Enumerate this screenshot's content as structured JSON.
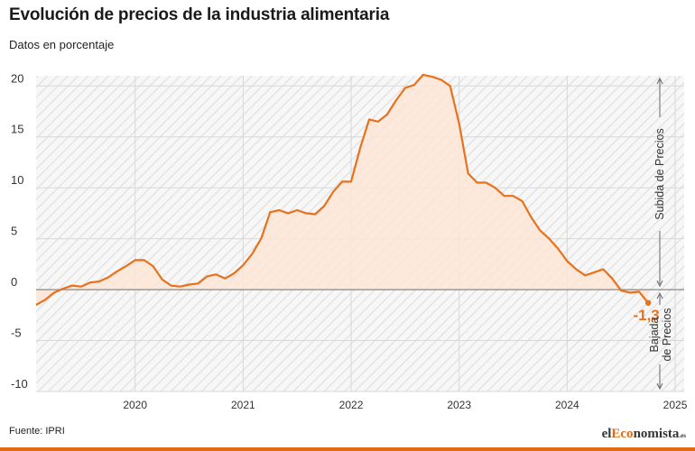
{
  "header": {
    "title": "Evolución de precios de la industria alimentaria",
    "subtitle": "Datos en porcentaje"
  },
  "footer": {
    "source": "Fuente: IPRI",
    "logo_prefix": "el",
    "logo_brand": "Eco",
    "logo_suffix": "nomista",
    "logo_tld": ".es"
  },
  "colors": {
    "line": "#e8711c",
    "area": "#fde6d6",
    "hatch": "#e6e6e6",
    "zero_line": "#888888"
  },
  "chart_data": {
    "type": "area",
    "title": "Evolución de precios de la industria alimentaria",
    "subtitle": "Datos en porcentaje",
    "x_ticks": [
      "2020",
      "2021",
      "2022",
      "2023",
      "2024",
      "2025"
    ],
    "y_ticks": [
      "-10",
      "-5",
      "0",
      "5",
      "10",
      "15",
      "20"
    ],
    "ylim": [
      -10,
      21
    ],
    "xlim": [
      "2019-02",
      "2025-02"
    ],
    "grid": true,
    "series": [
      {
        "x": [
          "2019-02",
          "2019-03",
          "2019-04",
          "2019-05",
          "2019-06",
          "2019-07",
          "2019-08",
          "2019-09",
          "2019-10",
          "2019-11",
          "2019-12",
          "2020-01",
          "2020-02",
          "2020-03",
          "2020-04",
          "2020-05",
          "2020-06",
          "2020-07",
          "2020-08",
          "2020-09",
          "2020-10",
          "2020-11",
          "2020-12",
          "2021-01",
          "2021-02",
          "2021-03",
          "2021-04",
          "2021-05",
          "2021-06",
          "2021-07",
          "2021-08",
          "2021-09",
          "2021-10",
          "2021-11",
          "2021-12",
          "2022-01",
          "2022-02",
          "2022-03",
          "2022-04",
          "2022-05",
          "2022-06",
          "2022-07",
          "2022-08",
          "2022-09",
          "2022-10",
          "2022-11",
          "2022-12",
          "2023-01",
          "2023-02",
          "2023-03",
          "2023-04",
          "2023-05",
          "2023-06",
          "2023-07",
          "2023-08",
          "2023-09",
          "2023-10",
          "2023-11",
          "2023-12",
          "2024-01",
          "2024-02",
          "2024-03",
          "2024-04",
          "2024-05",
          "2024-06",
          "2024-07",
          "2024-08",
          "2024-09",
          "2024-10"
        ],
        "values": [
          -1.5,
          -1.0,
          -0.3,
          0.1,
          0.4,
          0.3,
          0.7,
          0.8,
          1.2,
          1.8,
          2.3,
          2.9,
          2.9,
          2.3,
          1.0,
          0.4,
          0.3,
          0.5,
          0.6,
          1.3,
          1.5,
          1.1,
          1.6,
          2.4,
          3.5,
          5.0,
          7.6,
          7.8,
          7.5,
          7.8,
          7.5,
          7.4,
          8.2,
          9.6,
          10.6,
          10.6,
          13.9,
          16.7,
          16.5,
          17.2,
          18.6,
          19.8,
          20.1,
          21.1,
          20.9,
          20.6,
          20.0,
          16.3,
          11.4,
          10.5,
          10.5,
          10.0,
          9.2,
          9.2,
          8.7,
          7.1,
          5.8,
          5.0,
          4.0,
          2.8,
          2.0,
          1.4,
          1.7,
          2.0,
          1.1,
          -0.1,
          -0.3,
          -0.2,
          -1.3
        ]
      }
    ],
    "annotations": {
      "last_value_label": "-1,3",
      "upper_band_label": "Subida de Precios",
      "lower_band_label_line1": "Bajada",
      "lower_band_label_line2": "de Precios"
    }
  }
}
